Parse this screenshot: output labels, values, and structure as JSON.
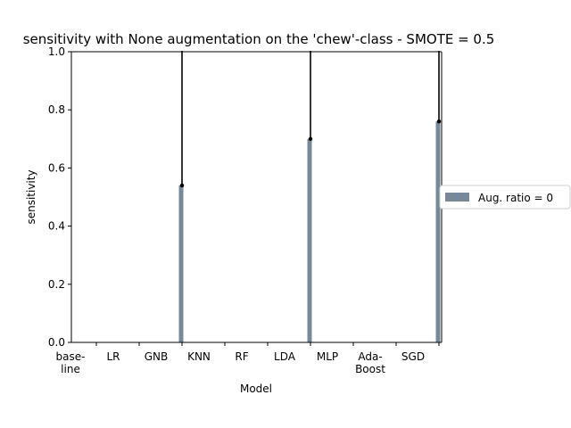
{
  "chart_data": {
    "type": "bar",
    "title": "sensitivity with None augmentation on the 'chew'-class - SMOTE = 0.5",
    "xlabel": "Model",
    "ylabel": "sensitivity",
    "categories": [
      [
        "base-",
        "line"
      ],
      [
        "LR"
      ],
      [
        "GNB"
      ],
      [
        "KNN"
      ],
      [
        "RF"
      ],
      [
        "LDA"
      ],
      [
        "MLP"
      ],
      [
        "Ada-",
        "Boost"
      ],
      [
        "SGD"
      ]
    ],
    "ylim": [
      0,
      1.0
    ],
    "yticks": [
      "0.0",
      "0.2",
      "0.4",
      "0.6",
      "0.8",
      "1.0"
    ],
    "series": [
      {
        "name": "Aug. ratio = 0",
        "color": "#778899",
        "values": [
          null,
          null,
          0.54,
          null,
          null,
          0.7,
          null,
          null,
          0.76
        ],
        "error_upper": [
          null,
          null,
          1.0,
          null,
          null,
          1.0,
          null,
          null,
          1.0
        ]
      }
    ],
    "legend": "right",
    "grid": false
  }
}
